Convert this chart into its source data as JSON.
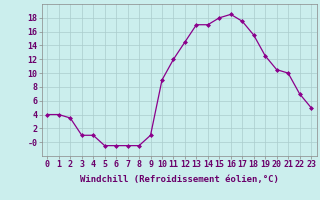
{
  "x": [
    0,
    1,
    2,
    3,
    4,
    5,
    6,
    7,
    8,
    9,
    10,
    11,
    12,
    13,
    14,
    15,
    16,
    17,
    18,
    19,
    20,
    21,
    22,
    23
  ],
  "y": [
    4,
    4,
    3.5,
    1,
    1,
    -0.5,
    -0.5,
    -0.5,
    -0.5,
    1,
    9,
    12,
    14.5,
    17,
    17,
    18,
    18.5,
    17.5,
    15.5,
    12.5,
    10.5,
    10,
    7,
    5
  ],
  "line_color": "#8B008B",
  "marker": "D",
  "marker_size": 2,
  "bg_color": "#cbeeed",
  "grid_color": "#aacccc",
  "xlabel": "Windchill (Refroidissement éolien,°C)",
  "xlim": [
    -0.5,
    23.5
  ],
  "ylim": [
    -2,
    20
  ],
  "yticks": [
    0,
    2,
    4,
    6,
    8,
    10,
    12,
    14,
    16,
    18
  ],
  "ytick_labels": [
    "-0",
    "2",
    "4",
    "6",
    "8",
    "10",
    "12",
    "14",
    "16",
    "18"
  ],
  "xticks": [
    0,
    1,
    2,
    3,
    4,
    5,
    6,
    7,
    8,
    9,
    10,
    11,
    12,
    13,
    14,
    15,
    16,
    17,
    18,
    19,
    20,
    21,
    22,
    23
  ],
  "tick_fontsize": 6,
  "xlabel_fontsize": 6.5,
  "spine_color": "#888888",
  "label_color": "#6B006B"
}
